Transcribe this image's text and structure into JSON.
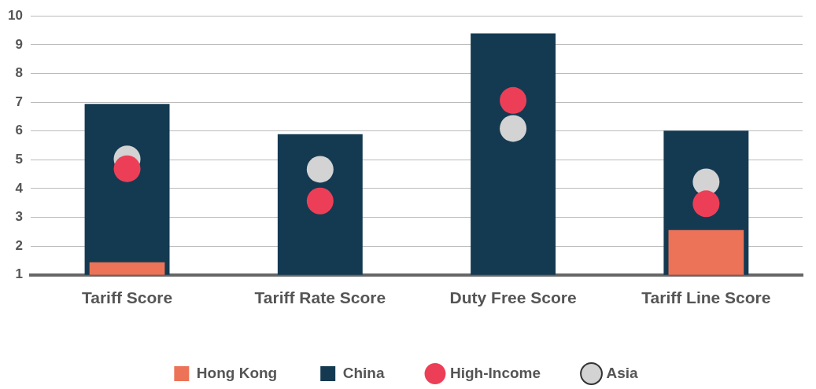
{
  "chart_data": {
    "type": "bar",
    "categories": [
      "Tariff Score",
      "Tariff Rate Score",
      "Duty Free Score",
      "Tariff Line Score"
    ],
    "series": [
      {
        "name": "Hong Kong",
        "color": "#ec7357",
        "values": [
          1.44,
          null,
          null,
          2.56
        ]
      },
      {
        "name": "China",
        "color": "#143a52",
        "values": [
          6.94,
          5.89,
          9.39,
          6.01
        ]
      },
      {
        "name": "High-Income",
        "type": "scatter",
        "color": "#ec3f57",
        "values": [
          4.69,
          3.57,
          7.06,
          3.47
        ]
      },
      {
        "name": "Asia",
        "type": "scatter",
        "color": "#d3d3d3",
        "values": [
          5.03,
          4.67,
          6.09,
          4.23
        ]
      }
    ],
    "ylim": [
      1,
      10
    ],
    "yticks": [
      1,
      2,
      3,
      4,
      5,
      6,
      7,
      8,
      9,
      10
    ],
    "grid": "y",
    "legend": "bottom",
    "marker": "circle"
  }
}
